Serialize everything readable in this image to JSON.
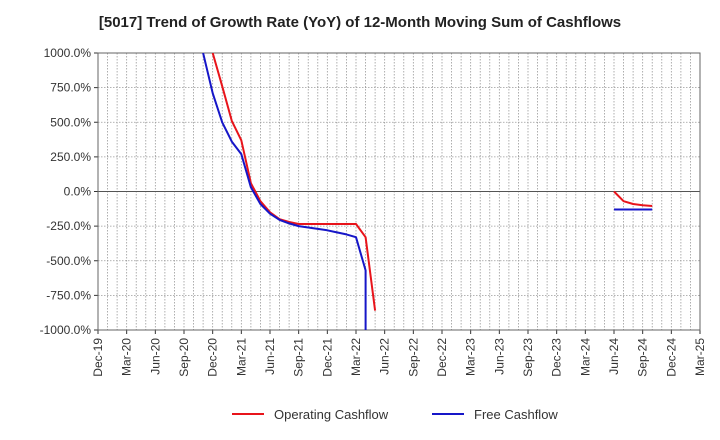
{
  "chart_data": {
    "type": "line",
    "title": "[5017]  Trend of Growth Rate (YoY) of 12-Month Moving Sum of Cashflows",
    "xlabel": "",
    "ylabel": "",
    "ylim": [
      -1000,
      1000
    ],
    "y_ticks": [
      {
        "value": 1000,
        "label": "1000.0%"
      },
      {
        "value": 750,
        "label": "750.0%"
      },
      {
        "value": 500,
        "label": "500.0%"
      },
      {
        "value": 250,
        "label": "250.0%"
      },
      {
        "value": 0,
        "label": "0.0%"
      },
      {
        "value": -250,
        "label": "-250.0%"
      },
      {
        "value": -500,
        "label": "-500.0%"
      },
      {
        "value": -750,
        "label": "-750.0%"
      },
      {
        "value": -1000,
        "label": "-1000.0%"
      }
    ],
    "x_range": [
      "2019-12",
      "2025-03"
    ],
    "x_tick_labels": [
      "Dec-19",
      "Mar-20",
      "Jun-20",
      "Sep-20",
      "Dec-20",
      "Mar-21",
      "Jun-21",
      "Sep-21",
      "Dec-21",
      "Mar-22",
      "Jun-22",
      "Sep-22",
      "Dec-22",
      "Mar-23",
      "Jun-23",
      "Sep-23",
      "Dec-23",
      "Mar-24",
      "Jun-24",
      "Sep-24",
      "Dec-24",
      "Mar-25"
    ],
    "grid": true,
    "legend_position": "bottom",
    "series": [
      {
        "name": "Operating Cashflow",
        "color": "#e8141b",
        "segments": [
          [
            {
              "x": "2020-12",
              "y": 1000
            },
            {
              "x": "2021-01",
              "y": 760
            },
            {
              "x": "2021-02",
              "y": 510
            },
            {
              "x": "2021-03",
              "y": 370
            },
            {
              "x": "2021-04",
              "y": 60
            },
            {
              "x": "2021-05",
              "y": -70
            },
            {
              "x": "2021-06",
              "y": -150
            },
            {
              "x": "2021-07",
              "y": -200
            },
            {
              "x": "2021-08",
              "y": -220
            },
            {
              "x": "2021-09",
              "y": -235
            },
            {
              "x": "2021-10",
              "y": -235
            },
            {
              "x": "2021-11",
              "y": -235
            },
            {
              "x": "2021-12",
              "y": -235
            },
            {
              "x": "2022-01",
              "y": -235
            },
            {
              "x": "2022-02",
              "y": -235
            },
            {
              "x": "2022-03",
              "y": -235
            },
            {
              "x": "2022-04",
              "y": -330
            },
            {
              "x": "2022-05",
              "y": -860
            }
          ],
          [
            {
              "x": "2024-06",
              "y": 0
            },
            {
              "x": "2024-07",
              "y": -70
            },
            {
              "x": "2024-08",
              "y": -90
            },
            {
              "x": "2024-09",
              "y": -100
            },
            {
              "x": "2024-10",
              "y": -105
            }
          ]
        ]
      },
      {
        "name": "Free Cashflow",
        "color": "#1616c8",
        "segments": [
          [
            {
              "x": "2020-11",
              "y": 1000
            },
            {
              "x": "2020-12",
              "y": 710
            },
            {
              "x": "2021-01",
              "y": 500
            },
            {
              "x": "2021-02",
              "y": 360
            },
            {
              "x": "2021-03",
              "y": 270
            },
            {
              "x": "2021-04",
              "y": 30
            },
            {
              "x": "2021-05",
              "y": -90
            },
            {
              "x": "2021-06",
              "y": -160
            },
            {
              "x": "2021-07",
              "y": -205
            },
            {
              "x": "2021-08",
              "y": -230
            },
            {
              "x": "2021-09",
              "y": -250
            },
            {
              "x": "2021-10",
              "y": -260
            },
            {
              "x": "2021-11",
              "y": -270
            },
            {
              "x": "2021-12",
              "y": -280
            },
            {
              "x": "2022-01",
              "y": -295
            },
            {
              "x": "2022-02",
              "y": -310
            },
            {
              "x": "2022-03",
              "y": -330
            },
            {
              "x": "2022-04",
              "y": -570
            },
            {
              "x": "2022-04",
              "y": -1000
            }
          ],
          [
            {
              "x": "2024-06",
              "y": -130
            },
            {
              "x": "2024-07",
              "y": -130
            },
            {
              "x": "2024-08",
              "y": -130
            },
            {
              "x": "2024-09",
              "y": -130
            },
            {
              "x": "2024-10",
              "y": -130
            }
          ]
        ]
      }
    ]
  }
}
